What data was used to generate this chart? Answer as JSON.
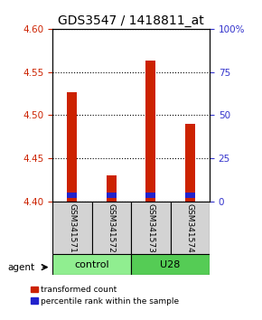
{
  "title": "GDS3547 / 1418811_at",
  "samples": [
    "GSM341571",
    "GSM341572",
    "GSM341573",
    "GSM341574"
  ],
  "groups": [
    {
      "label": "control",
      "color": "#90EE90"
    },
    {
      "label": "U28",
      "color": "#55CC55"
    }
  ],
  "ylim_left": [
    4.4,
    4.6
  ],
  "ylim_right": [
    0,
    100
  ],
  "yticks_left": [
    4.4,
    4.45,
    4.5,
    4.55,
    4.6
  ],
  "yticks_right": [
    0,
    25,
    50,
    75,
    100
  ],
  "ytick_labels_right": [
    "0",
    "25",
    "50",
    "75",
    "100%"
  ],
  "bar_bottom": 4.4,
  "red_tops": [
    4.527,
    4.43,
    4.563,
    4.49
  ],
  "blue_bottoms": [
    4.404,
    4.404,
    4.404,
    4.404
  ],
  "blue_tops": [
    4.411,
    4.411,
    4.411,
    4.411
  ],
  "red_color": "#CC2200",
  "blue_color": "#2222CC",
  "bar_width": 0.25,
  "legend_red": "transformed count",
  "legend_blue": "percentile rank within the sample",
  "agent_label": "agent",
  "group_label_control": "control",
  "group_label_u28": "U28",
  "title_fontsize": 10,
  "tick_fontsize": 7.5,
  "sample_label_fontsize": 6.5,
  "group_label_fontsize": 8,
  "legend_fontsize": 6.5,
  "background_color": "#ffffff",
  "left_color": "#CC2200",
  "right_color": "#3333CC",
  "ctrl_color": "#90EE90",
  "u28_color": "#55CC55"
}
